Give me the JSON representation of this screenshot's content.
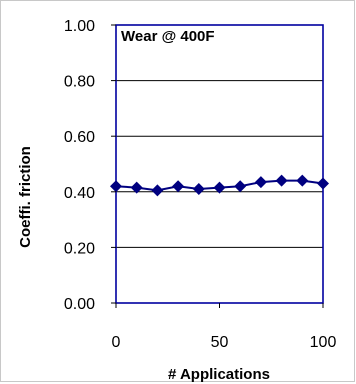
{
  "chart_data": {
    "type": "line",
    "title": "Wear @ 400F",
    "xlabel": "# Applications",
    "ylabel": "Coeffi. friction",
    "xlim": [
      0,
      100
    ],
    "ylim": [
      0,
      1
    ],
    "xticks": [
      0,
      50,
      100
    ],
    "yticks": [
      0,
      0.2,
      0.4,
      0.6,
      0.8,
      1.0
    ],
    "xtick_labels": [
      "0",
      "50",
      "100"
    ],
    "ytick_labels": [
      "0.00",
      "0.20",
      "0.40",
      "0.60",
      "0.80",
      "1.00"
    ],
    "grid": "horizontal",
    "legend": "none",
    "colors": {
      "plot_border": "#0000a0",
      "series": "#000080",
      "grid": "#000000"
    },
    "series": [
      {
        "marker": "diamond",
        "x": [
          0,
          10,
          20,
          30,
          40,
          50,
          60,
          70,
          80,
          90,
          100
        ],
        "y": [
          0.42,
          0.415,
          0.405,
          0.42,
          0.41,
          0.415,
          0.42,
          0.435,
          0.44,
          0.44,
          0.43
        ]
      }
    ]
  }
}
